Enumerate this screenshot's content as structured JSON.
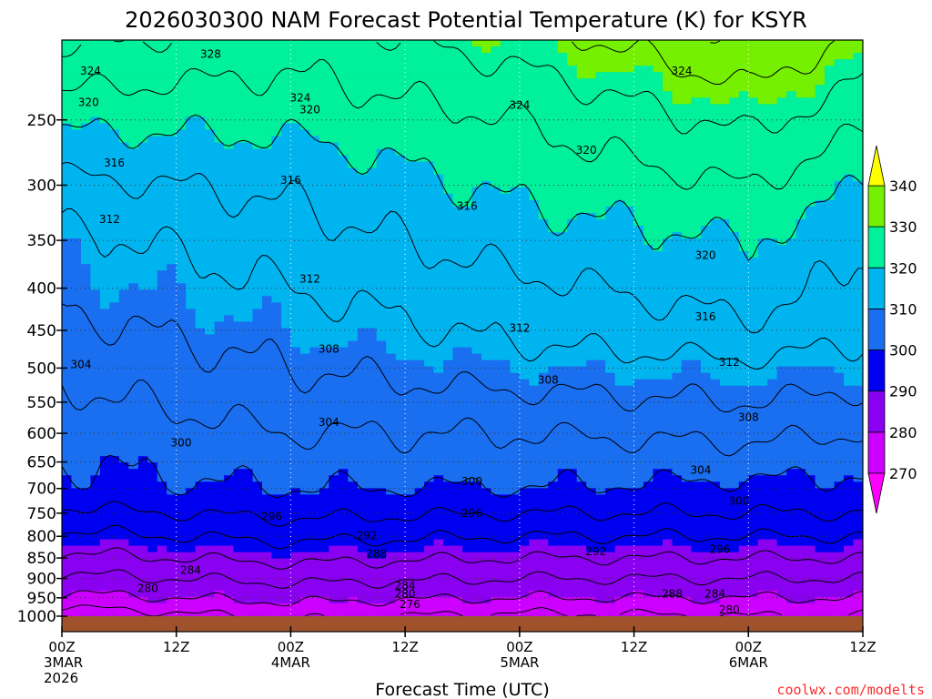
{
  "chart_data": {
    "type": "heatmap",
    "subtype": "filled-contour time-height section",
    "title": "2026030300 NAM Forecast Potential Temperature (K) for KSYR",
    "xlabel": "Forecast Time (UTC)",
    "ylabel": "",
    "credit": "coolwx.com/modelts",
    "x_ticks": [
      {
        "hour": 0,
        "line1": "00Z",
        "line2": "3MAR",
        "line3": "2026"
      },
      {
        "hour": 12,
        "line1": "12Z",
        "line2": "",
        "line3": ""
      },
      {
        "hour": 24,
        "line1": "00Z",
        "line2": "4MAR",
        "line3": ""
      },
      {
        "hour": 36,
        "line1": "12Z",
        "line2": "",
        "line3": ""
      },
      {
        "hour": 48,
        "line1": "00Z",
        "line2": "5MAR",
        "line3": ""
      },
      {
        "hour": 60,
        "line1": "12Z",
        "line2": "",
        "line3": ""
      },
      {
        "hour": 72,
        "line1": "00Z",
        "line2": "6MAR",
        "line3": ""
      },
      {
        "hour": 84,
        "line1": "12Z",
        "line2": "",
        "line3": ""
      }
    ],
    "xlim_hours": [
      0,
      84
    ],
    "y_ticks_hpa": [
      250,
      300,
      350,
      400,
      450,
      500,
      550,
      600,
      650,
      700,
      750,
      800,
      850,
      900,
      950,
      1000
    ],
    "ylim_hpa": [
      200,
      1000
    ],
    "y_scale": "log-pressure",
    "colorbar": {
      "levels": [
        270,
        280,
        290,
        300,
        310,
        320,
        330,
        340
      ],
      "labels": [
        "270",
        "280",
        "290",
        "300",
        "310",
        "320",
        "330",
        "340"
      ],
      "colors": [
        "#ff00ff",
        "#cc00ff",
        "#8a00f0",
        "#0000f0",
        "#1a6ef0",
        "#00b4f0",
        "#00f09b",
        "#74f000",
        "#ffff00"
      ],
      "extend": "both"
    },
    "contour_interval_K": 4,
    "contour_labels": [
      {
        "value": "328",
        "hour": 15.6,
        "p": 208
      },
      {
        "value": "324",
        "hour": 3.0,
        "p": 218
      },
      {
        "value": "324",
        "hour": 25.0,
        "p": 235
      },
      {
        "value": "324",
        "hour": 48.0,
        "p": 240
      },
      {
        "value": "324",
        "hour": 65.0,
        "p": 218
      },
      {
        "value": "320",
        "hour": 2.8,
        "p": 238
      },
      {
        "value": "320",
        "hour": 26.0,
        "p": 243
      },
      {
        "value": "320",
        "hour": 55.0,
        "p": 272
      },
      {
        "value": "320",
        "hour": 67.5,
        "p": 365
      },
      {
        "value": "316",
        "hour": 5.5,
        "p": 282
      },
      {
        "value": "316",
        "hour": 24.0,
        "p": 296
      },
      {
        "value": "316",
        "hour": 42.5,
        "p": 318
      },
      {
        "value": "316",
        "hour": 67.5,
        "p": 433
      },
      {
        "value": "312",
        "hour": 5.0,
        "p": 330
      },
      {
        "value": "312",
        "hour": 26.0,
        "p": 390
      },
      {
        "value": "312",
        "hour": 48.0,
        "p": 447
      },
      {
        "value": "312",
        "hour": 70.0,
        "p": 492
      },
      {
        "value": "308",
        "hour": 28.0,
        "p": 474
      },
      {
        "value": "308",
        "hour": 51.0,
        "p": 517
      },
      {
        "value": "308",
        "hour": 72.0,
        "p": 574
      },
      {
        "value": "304",
        "hour": 2.0,
        "p": 495
      },
      {
        "value": "304",
        "hour": 28.0,
        "p": 582
      },
      {
        "value": "304",
        "hour": 67.0,
        "p": 665
      },
      {
        "value": "300",
        "hour": 12.5,
        "p": 616
      },
      {
        "value": "300",
        "hour": 43.0,
        "p": 686
      },
      {
        "value": "300",
        "hour": 71.0,
        "p": 725
      },
      {
        "value": "296",
        "hour": 22.0,
        "p": 757
      },
      {
        "value": "296",
        "hour": 43.0,
        "p": 750
      },
      {
        "value": "296",
        "hour": 69.0,
        "p": 830
      },
      {
        "value": "292",
        "hour": 32.0,
        "p": 798
      },
      {
        "value": "292",
        "hour": 56.0,
        "p": 835
      },
      {
        "value": "288",
        "hour": 33.0,
        "p": 840
      },
      {
        "value": "288",
        "hour": 64.0,
        "p": 940
      },
      {
        "value": "284",
        "hour": 13.5,
        "p": 880
      },
      {
        "value": "284",
        "hour": 36.0,
        "p": 918
      },
      {
        "value": "284",
        "hour": 68.5,
        "p": 940
      },
      {
        "value": "280",
        "hour": 9.0,
        "p": 925
      },
      {
        "value": "280",
        "hour": 36.0,
        "p": 940
      },
      {
        "value": "280",
        "hour": 70.0,
        "p": 982
      },
      {
        "value": "276",
        "hour": 36.5,
        "p": 967
      }
    ],
    "theta_profile_k_at_hpa": {
      "pressure": [
        1000,
        950,
        900,
        850,
        800,
        750,
        700,
        650,
        600,
        550,
        500,
        450,
        400,
        350,
        300,
        250,
        200
      ],
      "hour_0": [
        273,
        279,
        283,
        287,
        291,
        295,
        299,
        300,
        301,
        303,
        305,
        307,
        309,
        311,
        315,
        321,
        329
      ],
      "hour_24": [
        277,
        281,
        285,
        289,
        293,
        297,
        300,
        302,
        304,
        306,
        308,
        310,
        312,
        314,
        317,
        321,
        326
      ],
      "hour_48": [
        275,
        280,
        284,
        288,
        292,
        296,
        300,
        302,
        304,
        307,
        310,
        313,
        315,
        318,
        321,
        324,
        330
      ],
      "hour_72": [
        276,
        280,
        284,
        288,
        292,
        296,
        299,
        302,
        305,
        308,
        311,
        315,
        318,
        320,
        324,
        329,
        336
      ],
      "hour_84": [
        276,
        280,
        284,
        288,
        292,
        296,
        299,
        301,
        304,
        307,
        310,
        313,
        315,
        317,
        320,
        325,
        331
      ]
    }
  }
}
